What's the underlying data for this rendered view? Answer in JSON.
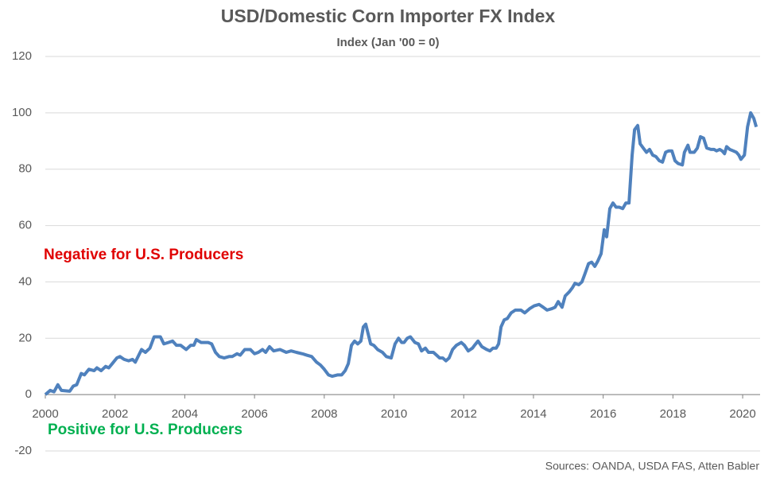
{
  "chart_data": {
    "type": "line",
    "title": "USD/Domestic Corn Importer FX Index",
    "subtitle": "Index (Jan '00 = 0)",
    "annotations": [
      "Negative for U.S. Producers",
      "Positive for U.S. Producers"
    ],
    "annotation_colors": [
      "#e00000",
      "#00b050"
    ],
    "source": "Sources: OANDA, USDA FAS, Atten Babler",
    "color": "#4f81bd",
    "grid": true,
    "xlim": [
      2000,
      2020.5
    ],
    "xticks": [
      2000,
      2002,
      2004,
      2006,
      2008,
      2010,
      2012,
      2014,
      2016,
      2018,
      2020
    ],
    "ylim": [
      -20,
      120
    ],
    "yticks": [
      -20,
      0,
      20,
      40,
      60,
      80,
      100,
      120
    ],
    "x": [
      2000,
      2000.14,
      2000.25,
      2000.36,
      2000.46,
      2000.7,
      2000.8,
      2000.9,
      2001.03,
      2001.12,
      2001.25,
      2001.4,
      2001.48,
      2001.6,
      2001.73,
      2001.82,
      2001.92,
      2002.05,
      2002.14,
      2002.26,
      2002.39,
      2002.5,
      2002.58,
      2002.76,
      2002.87,
      2003.0,
      2003.12,
      2003.3,
      2003.4,
      2003.53,
      2003.65,
      2003.76,
      2003.88,
      2004.04,
      2004.17,
      2004.26,
      2004.33,
      2004.47,
      2004.67,
      2004.77,
      2004.88,
      2004.99,
      2005.13,
      2005.27,
      2005.36,
      2005.5,
      2005.59,
      2005.72,
      2005.88,
      2006.0,
      2006.11,
      2006.23,
      2006.32,
      2006.43,
      2006.55,
      2006.73,
      2006.91,
      2007.05,
      2007.2,
      2007.37,
      2007.5,
      2007.64,
      2007.78,
      2007.89,
      2008.0,
      2008.12,
      2008.23,
      2008.39,
      2008.5,
      2008.6,
      2008.69,
      2008.78,
      2008.87,
      2008.96,
      2009.05,
      2009.12,
      2009.19,
      2009.33,
      2009.42,
      2009.53,
      2009.67,
      2009.78,
      2009.92,
      2010.03,
      2010.13,
      2010.22,
      2010.29,
      2010.38,
      2010.47,
      2010.6,
      2010.7,
      2010.79,
      2010.9,
      2010.99,
      2011.13,
      2011.22,
      2011.31,
      2011.4,
      2011.49,
      2011.58,
      2011.68,
      2011.79,
      2011.93,
      2012.02,
      2012.13,
      2012.25,
      2012.31,
      2012.41,
      2012.52,
      2012.66,
      2012.75,
      2012.84,
      2012.93,
      2013.0,
      2013.07,
      2013.16,
      2013.25,
      2013.36,
      2013.48,
      2013.64,
      2013.75,
      2013.89,
      2014.02,
      2014.16,
      2014.28,
      2014.39,
      2014.53,
      2014.62,
      2014.71,
      2014.82,
      2014.91,
      2015.03,
      2015.12,
      2015.19,
      2015.3,
      2015.39,
      2015.48,
      2015.58,
      2015.67,
      2015.76,
      2015.85,
      2015.94,
      2016.03,
      2016.1,
      2016.19,
      2016.28,
      2016.37,
      2016.46,
      2016.56,
      2016.65,
      2016.74,
      2016.83,
      2016.9,
      2016.99,
      2017.06,
      2017.15,
      2017.24,
      2017.33,
      2017.42,
      2017.51,
      2017.61,
      2017.7,
      2017.79,
      2017.88,
      2017.97,
      2018.06,
      2018.15,
      2018.27,
      2018.33,
      2018.43,
      2018.49,
      2018.61,
      2018.7,
      2018.79,
      2018.88,
      2018.97,
      2019.09,
      2019.18,
      2019.25,
      2019.34,
      2019.41,
      2019.48,
      2019.54,
      2019.63,
      2019.73,
      2019.82,
      2019.89,
      2019.95,
      2020.05,
      2020.14,
      2020.23,
      2020.32,
      2020.39
    ],
    "values": [
      0,
      1.5,
      1,
      3.5,
      1.5,
      1.2,
      3,
      3.5,
      7.5,
      7,
      9,
      8.5,
      9.5,
      8.5,
      10,
      9.5,
      11,
      13,
      13.5,
      12.5,
      12,
      12.5,
      11.5,
      16,
      15,
      16.5,
      20.5,
      20.5,
      18,
      18.5,
      19,
      17.5,
      17.5,
      16,
      17.5,
      17.5,
      19.5,
      18.5,
      18.5,
      18,
      15,
      13.5,
      13,
      13.5,
      13.5,
      14.5,
      14,
      16,
      16,
      14.5,
      15,
      16,
      15,
      17,
      15.5,
      16,
      15,
      15.5,
      15,
      14.5,
      14,
      13.5,
      11.5,
      10.5,
      9,
      7,
      6.5,
      7,
      7,
      8.5,
      11,
      17.5,
      19,
      18,
      19,
      24,
      25,
      18,
      17.5,
      16,
      15,
      13.5,
      13,
      18,
      20,
      18.5,
      18.5,
      20,
      20.5,
      18.5,
      18,
      15.5,
      16.5,
      15,
      15,
      14,
      13,
      13,
      12,
      13,
      16,
      17.5,
      18.5,
      17.5,
      15.5,
      16.5,
      17.5,
      19,
      17,
      16,
      15.5,
      16.5,
      16.5,
      18,
      24,
      26.5,
      27,
      29,
      30,
      30,
      29,
      30.5,
      31.5,
      32,
      31,
      30,
      30.5,
      31,
      33,
      31,
      35,
      36.5,
      38,
      39.5,
      39,
      40,
      43,
      46.5,
      47,
      45.5,
      47.5,
      50,
      58.5,
      56,
      66,
      68,
      66.5,
      66.5,
      66,
      68,
      68,
      85,
      94,
      95.5,
      89,
      87.5,
      86,
      87,
      85,
      84.5,
      83,
      82.5,
      86,
      86.5,
      86.5,
      83,
      82,
      81.5,
      86,
      88.5,
      86,
      86,
      87.5,
      91.5,
      91,
      87.5,
      87,
      87,
      86.5,
      87,
      86.5,
      85.5,
      88,
      87,
      86.5,
      86,
      85,
      83.5,
      85,
      95,
      100,
      98,
      95
    ]
  }
}
